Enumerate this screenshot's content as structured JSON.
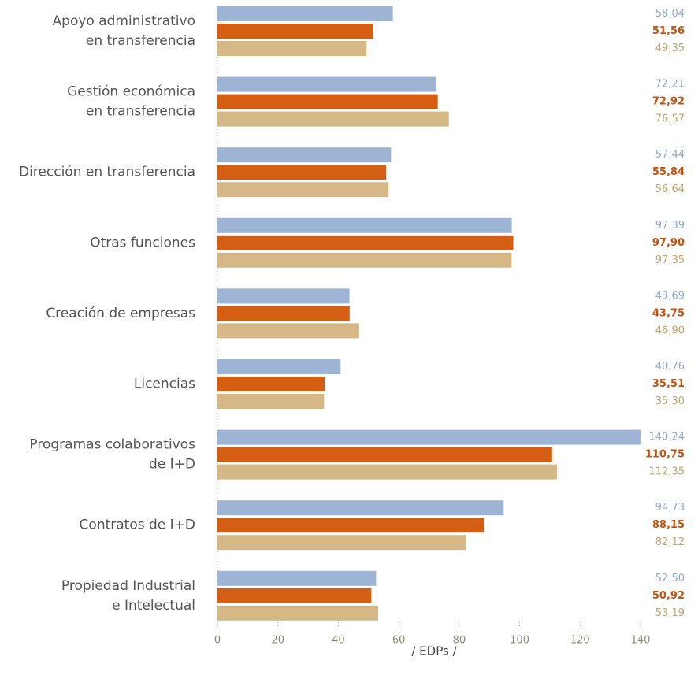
{
  "chart_data": {
    "type": "bar",
    "orientation": "horizontal",
    "categories": [
      [
        "Apoyo administrativo",
        "en transferencia"
      ],
      [
        "Gestión económica",
        "en transferencia"
      ],
      [
        "Dirección en transferencia"
      ],
      [
        "Otras funciones"
      ],
      [
        "Creación de empresas"
      ],
      [
        "Licencias"
      ],
      [
        "Programas colaborativos",
        "de I+D"
      ],
      [
        "Contratos de I+D"
      ],
      [
        "Propiedad Industrial",
        "e Intelectual"
      ]
    ],
    "series": [
      {
        "color": "#9db4d4",
        "label_color": "#8fa9cf",
        "values": [
          58.04,
          72.21,
          57.44,
          97.39,
          43.69,
          40.76,
          140.24,
          94.73,
          52.5
        ],
        "value_labels": [
          "58,04",
          "72,21",
          "57,44",
          "97,39",
          "43,69",
          "40,76",
          "140,24",
          "94,73",
          "52,50"
        ]
      },
      {
        "color": "#d45f13",
        "label_color": "#c9520a",
        "values": [
          51.56,
          72.92,
          55.84,
          97.9,
          43.75,
          35.51,
          110.75,
          88.15,
          50.92
        ],
        "value_labels": [
          "51,56",
          "72,92",
          "55,84",
          "97,90",
          "43,75",
          "35,51",
          "110,75",
          "88,15",
          "50,92"
        ]
      },
      {
        "color": "#d5b886",
        "label_color": "#c2a46e",
        "values": [
          49.35,
          76.57,
          56.64,
          97.35,
          46.9,
          35.3,
          112.35,
          82.12,
          53.19
        ],
        "value_labels": [
          "49,35",
          "76,57",
          "56,64",
          "97,35",
          "46,90",
          "35,30",
          "112,35",
          "82,12",
          "53,19"
        ]
      }
    ],
    "xlabel": "/  EDPs  /",
    "xlim": [
      0,
      140
    ],
    "xticks": [
      0,
      20,
      40,
      60,
      80,
      100,
      120,
      140
    ]
  }
}
